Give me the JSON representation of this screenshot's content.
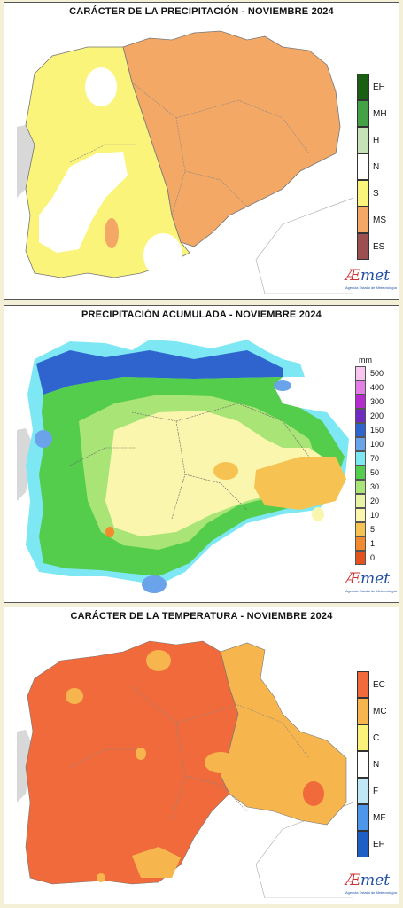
{
  "panels": {
    "precip_character": {
      "title": "CARÁCTER DE LA PRECIPITACIÓN - NOVIEMBRE 2024",
      "legend": [
        {
          "label": "EH",
          "color": "#1a5e14"
        },
        {
          "label": "MH",
          "color": "#45a145"
        },
        {
          "label": "H",
          "color": "#c6e3b8"
        },
        {
          "label": "N",
          "color": "#ffffff"
        },
        {
          "label": "S",
          "color": "#fbf47a"
        },
        {
          "label": "MS",
          "color": "#f4a865"
        },
        {
          "label": "ES",
          "color": "#9b4f4f"
        }
      ]
    },
    "precip_accumulated": {
      "title": "PRECIPITACIÓN ACUMULADA - NOVIEMBRE 2024",
      "unit": "mm",
      "legend": [
        {
          "label": "500",
          "color": "#f9c6f2"
        },
        {
          "label": "400",
          "color": "#e27ee4"
        },
        {
          "label": "300",
          "color": "#b52bcf"
        },
        {
          "label": "200",
          "color": "#6f2ac1"
        },
        {
          "label": "150",
          "color": "#2f64cf"
        },
        {
          "label": "100",
          "color": "#6aa3ea"
        },
        {
          "label": "70",
          "color": "#7de8f3"
        },
        {
          "label": "50",
          "color": "#54cc4c"
        },
        {
          "label": "30",
          "color": "#a9e477"
        },
        {
          "label": "20",
          "color": "#e9f3a5"
        },
        {
          "label": "10",
          "color": "#fbf6ad"
        },
        {
          "label": "5",
          "color": "#f6c352"
        },
        {
          "label": "1",
          "color": "#f38a2e"
        },
        {
          "label": "0",
          "color": "#e4531d"
        }
      ]
    },
    "temperature_character": {
      "title": "CARÁCTER DE LA TEMPERATURA - NOVIEMBRE 2024",
      "legend": [
        {
          "label": "EC",
          "color": "#f06a3b"
        },
        {
          "label": "MC",
          "color": "#f7b64d"
        },
        {
          "label": "C",
          "color": "#fbf27a"
        },
        {
          "label": "N",
          "color": "#ffffff"
        },
        {
          "label": "F",
          "color": "#bfe7f6"
        },
        {
          "label": "MF",
          "color": "#4e96ea"
        },
        {
          "label": "EF",
          "color": "#1d5fc7"
        }
      ]
    }
  },
  "logo": {
    "text_a": "Æ",
    "text_b": "met",
    "sub": "Agencia Estatal de Meteorología"
  }
}
